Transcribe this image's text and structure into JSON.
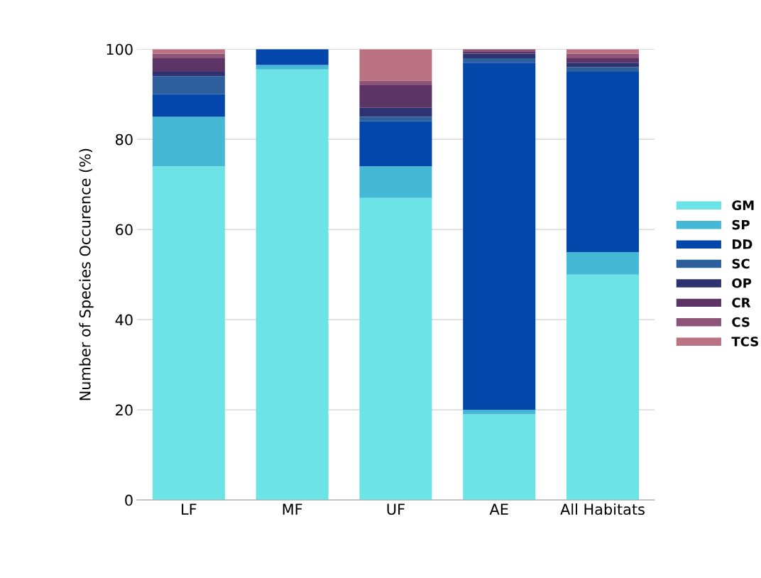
{
  "chart_data": {
    "type": "bar",
    "stacked": true,
    "ylabel": "Number of Species Occurence (%)",
    "categories": [
      "LF",
      "MF",
      "UF",
      "AE",
      "All Habitats"
    ],
    "series": [
      {
        "name": "GM",
        "color": "#6ce3e6",
        "values": [
          74,
          95.5,
          67,
          19,
          50
        ]
      },
      {
        "name": "SP",
        "color": "#45b8d6",
        "values": [
          11,
          1,
          7,
          1,
          5
        ]
      },
      {
        "name": "DD",
        "color": "#0447ab",
        "values": [
          5,
          3.5,
          10,
          77,
          40
        ]
      },
      {
        "name": "SC",
        "color": "#2c5f9b",
        "values": [
          4,
          0,
          1,
          1,
          1
        ]
      },
      {
        "name": "OP",
        "color": "#2c3370",
        "values": [
          1,
          0,
          2,
          1,
          1
        ]
      },
      {
        "name": "CR",
        "color": "#5c3566",
        "values": [
          3,
          0,
          5,
          0.5,
          1
        ]
      },
      {
        "name": "CS",
        "color": "#8e5478",
        "values": [
          1,
          0,
          1,
          0.5,
          1
        ]
      },
      {
        "name": "TCS",
        "color": "#bb7282",
        "values": [
          1,
          0,
          7,
          0,
          1
        ]
      }
    ],
    "ylim": [
      0,
      100
    ],
    "yticks": [
      0,
      20,
      40,
      60,
      80,
      100
    ],
    "grid": "y",
    "legend": "right"
  }
}
